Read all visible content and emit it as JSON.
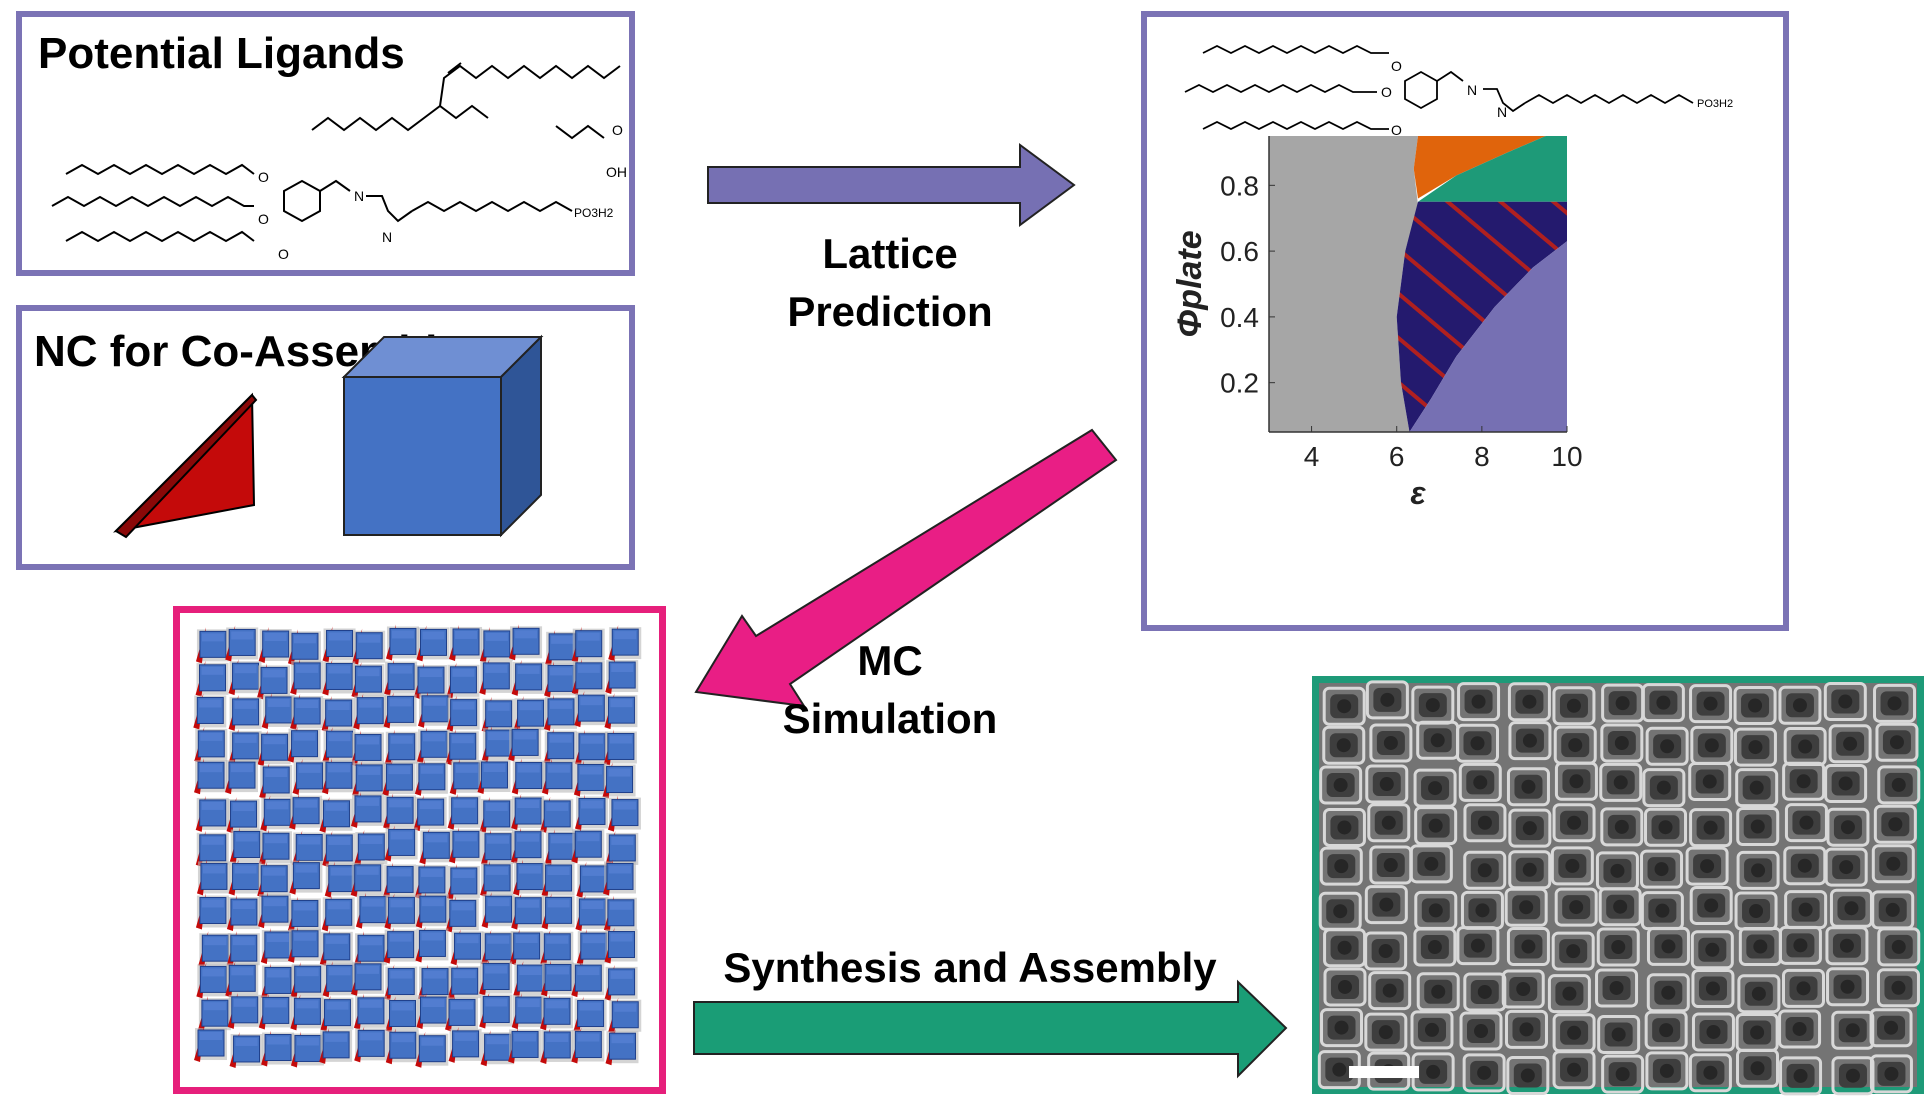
{
  "ligands_panel": {
    "title": "Potential Ligands"
  },
  "nc_panel": {
    "title": "NC for Co-Assembly"
  },
  "steps": {
    "lattice": [
      "Lattice",
      "Prediction"
    ],
    "mc": [
      "MC",
      "Simulation"
    ],
    "synthesis": "Synthesis and Assembly"
  },
  "chem_labels": {
    "hydroxyl": "OH",
    "oxygen": "O",
    "nitrogen": "N",
    "phosphonate": "PO3H2"
  },
  "colors": {
    "panel_border": "#7b73b5",
    "mc_border": "#e61f7b",
    "tem_border": "#1e9a78",
    "arrow_purple": "#7670b3",
    "arrow_pink": "#e91e85",
    "arrow_green": "#1a9d76",
    "plate_red": "#c40a0a",
    "cube_blue": "#4472c4"
  },
  "chart_data": {
    "type": "area",
    "xlabel": "ε",
    "ylabel": "Φplate",
    "xlim": [
      3,
      10
    ],
    "ylim": [
      0.05,
      0.95
    ],
    "xticks": [
      "4",
      "6",
      "8",
      "10"
    ],
    "yticks": [
      "0.2",
      "0.4",
      "0.6",
      "0.8"
    ],
    "regions": [
      {
        "color": "#a6a6a6"
      },
      {
        "color": "#e0640c"
      },
      {
        "color": "#1e9a78"
      },
      {
        "color": "#241a6e",
        "hatch": "#b0201f"
      },
      {
        "color": "#7670b3"
      }
    ]
  }
}
